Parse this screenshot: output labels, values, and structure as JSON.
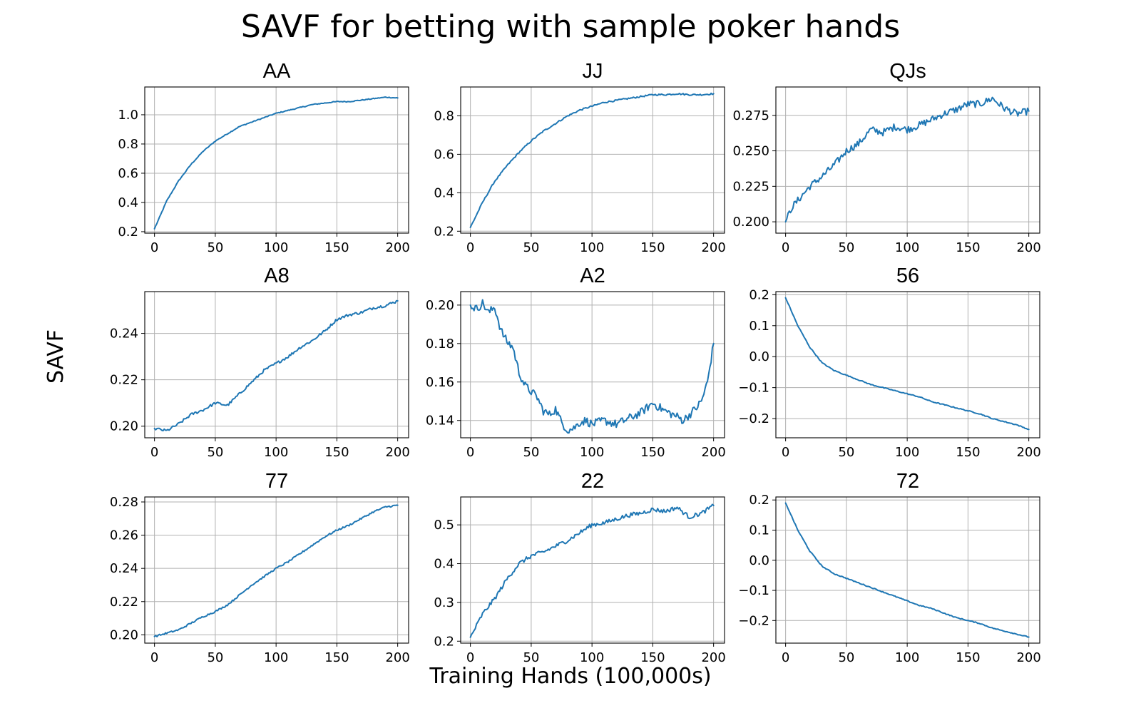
{
  "figure": {
    "title": "SAVF for betting with sample poker hands",
    "xlabel": "Training Hands (100,000s)",
    "ylabel": "SAVF",
    "line_color": "#1f77b4",
    "grid_color": "#b0b0b0"
  },
  "chart_data": [
    {
      "type": "line",
      "title": "AA",
      "grid": true,
      "xlim": [
        -8,
        209
      ],
      "ylim": [
        0.19,
        1.19
      ],
      "xticks": [
        0,
        50,
        100,
        150,
        200
      ],
      "yticks": [
        0.2,
        0.4,
        0.6,
        0.8,
        1.0
      ],
      "yticklabels": [
        "0.2",
        "0.4",
        "0.6",
        "0.8",
        "1.0"
      ],
      "x": [
        0,
        10,
        20,
        30,
        40,
        50,
        60,
        70,
        80,
        90,
        100,
        110,
        120,
        130,
        140,
        150,
        160,
        170,
        180,
        190,
        200
      ],
      "y": [
        0.22,
        0.41,
        0.55,
        0.66,
        0.75,
        0.82,
        0.87,
        0.92,
        0.95,
        0.98,
        1.01,
        1.03,
        1.05,
        1.07,
        1.08,
        1.09,
        1.09,
        1.1,
        1.11,
        1.12,
        1.115
      ],
      "noise": 0.003
    },
    {
      "type": "line",
      "title": "JJ",
      "grid": true,
      "xlim": [
        -8,
        209
      ],
      "ylim": [
        0.19,
        0.95
      ],
      "xticks": [
        0,
        50,
        100,
        150,
        200
      ],
      "yticks": [
        0.2,
        0.4,
        0.6,
        0.8
      ],
      "yticklabels": [
        "0.2",
        "0.4",
        "0.6",
        "0.8"
      ],
      "x": [
        0,
        10,
        20,
        30,
        40,
        50,
        60,
        70,
        80,
        90,
        100,
        110,
        120,
        130,
        140,
        150,
        160,
        170,
        180,
        190,
        200
      ],
      "y": [
        0.22,
        0.35,
        0.46,
        0.54,
        0.61,
        0.67,
        0.72,
        0.76,
        0.8,
        0.83,
        0.85,
        0.87,
        0.88,
        0.89,
        0.9,
        0.91,
        0.91,
        0.915,
        0.91,
        0.91,
        0.915
      ],
      "noise": 0.004
    },
    {
      "type": "line",
      "title": "QJs",
      "grid": true,
      "xlim": [
        -8,
        209
      ],
      "ylim": [
        0.192,
        0.295
      ],
      "xticks": [
        0,
        50,
        100,
        150,
        200
      ],
      "yticks": [
        0.2,
        0.225,
        0.25,
        0.275
      ],
      "yticklabels": [
        "0.200",
        "0.225",
        "0.250",
        "0.275"
      ],
      "x": [
        0,
        5,
        10,
        20,
        30,
        40,
        50,
        60,
        70,
        80,
        90,
        100,
        110,
        120,
        130,
        140,
        150,
        160,
        170,
        180,
        190,
        200
      ],
      "y": [
        0.2,
        0.21,
        0.215,
        0.225,
        0.232,
        0.24,
        0.25,
        0.255,
        0.265,
        0.263,
        0.267,
        0.265,
        0.268,
        0.272,
        0.276,
        0.279,
        0.283,
        0.283,
        0.287,
        0.28,
        0.276,
        0.278
      ],
      "noise": 0.0025
    },
    {
      "type": "line",
      "title": "A8",
      "grid": true,
      "xlim": [
        -8,
        209
      ],
      "ylim": [
        0.195,
        0.258
      ],
      "xticks": [
        0,
        50,
        100,
        150,
        200
      ],
      "yticks": [
        0.2,
        0.22,
        0.24
      ],
      "yticklabels": [
        "0.20",
        "0.22",
        "0.24"
      ],
      "x": [
        0,
        10,
        20,
        30,
        40,
        50,
        60,
        70,
        80,
        90,
        100,
        110,
        120,
        130,
        140,
        150,
        160,
        170,
        180,
        190,
        200
      ],
      "y": [
        0.199,
        0.198,
        0.201,
        0.205,
        0.207,
        0.21,
        0.209,
        0.214,
        0.219,
        0.224,
        0.227,
        0.23,
        0.234,
        0.237,
        0.241,
        0.246,
        0.248,
        0.249,
        0.251,
        0.252,
        0.254
      ],
      "noise": 0.0006
    },
    {
      "type": "line",
      "title": "A2",
      "grid": true,
      "xlim": [
        -8,
        209
      ],
      "ylim": [
        0.131,
        0.207
      ],
      "xticks": [
        0,
        50,
        100,
        150,
        200
      ],
      "yticks": [
        0.14,
        0.16,
        0.18,
        0.2
      ],
      "yticklabels": [
        "0.14",
        "0.16",
        "0.18",
        "0.20"
      ],
      "x": [
        0,
        5,
        10,
        15,
        20,
        25,
        30,
        35,
        40,
        45,
        50,
        55,
        60,
        65,
        70,
        75,
        80,
        85,
        90,
        95,
        100,
        110,
        120,
        130,
        140,
        150,
        160,
        170,
        175,
        180,
        185,
        190,
        195,
        200
      ],
      "y": [
        0.2,
        0.198,
        0.201,
        0.196,
        0.199,
        0.187,
        0.181,
        0.178,
        0.165,
        0.158,
        0.155,
        0.152,
        0.145,
        0.143,
        0.146,
        0.139,
        0.135,
        0.136,
        0.139,
        0.14,
        0.138,
        0.14,
        0.138,
        0.141,
        0.144,
        0.149,
        0.145,
        0.142,
        0.14,
        0.143,
        0.146,
        0.15,
        0.16,
        0.18
      ],
      "noise": 0.0022
    },
    {
      "type": "line",
      "title": "56",
      "grid": true,
      "xlim": [
        -8,
        209
      ],
      "ylim": [
        -0.262,
        0.21
      ],
      "xticks": [
        0,
        50,
        100,
        150,
        200
      ],
      "yticks": [
        -0.2,
        -0.1,
        0.0,
        0.1,
        0.2
      ],
      "yticklabels": [
        "−0.2",
        "−0.1",
        "0.0",
        "0.1",
        "0.2"
      ],
      "x": [
        0,
        10,
        20,
        30,
        40,
        50,
        60,
        70,
        80,
        90,
        100,
        110,
        120,
        130,
        140,
        150,
        160,
        170,
        180,
        190,
        200
      ],
      "y": [
        0.19,
        0.1,
        0.03,
        -0.02,
        -0.045,
        -0.06,
        -0.075,
        -0.09,
        -0.1,
        -0.11,
        -0.12,
        -0.13,
        -0.145,
        -0.155,
        -0.165,
        -0.175,
        -0.185,
        -0.2,
        -0.21,
        -0.22,
        -0.235
      ],
      "noise": 0.0015
    },
    {
      "type": "line",
      "title": "77",
      "grid": true,
      "xlim": [
        -8,
        209
      ],
      "ylim": [
        0.195,
        0.283
      ],
      "xticks": [
        0,
        50,
        100,
        150,
        200
      ],
      "yticks": [
        0.2,
        0.22,
        0.24,
        0.26,
        0.28
      ],
      "yticklabels": [
        "0.20",
        "0.22",
        "0.24",
        "0.26",
        "0.28"
      ],
      "x": [
        0,
        10,
        20,
        30,
        40,
        50,
        60,
        70,
        80,
        90,
        100,
        110,
        120,
        130,
        140,
        150,
        160,
        170,
        180,
        190,
        200
      ],
      "y": [
        0.199,
        0.201,
        0.203,
        0.207,
        0.211,
        0.214,
        0.218,
        0.224,
        0.23,
        0.235,
        0.24,
        0.244,
        0.249,
        0.254,
        0.259,
        0.263,
        0.266,
        0.27,
        0.274,
        0.277,
        0.278
      ],
      "noise": 0.0005
    },
    {
      "type": "line",
      "title": "22",
      "grid": true,
      "xlim": [
        -8,
        209
      ],
      "ylim": [
        0.195,
        0.572
      ],
      "xticks": [
        0,
        50,
        100,
        150,
        200
      ],
      "yticks": [
        0.2,
        0.3,
        0.4,
        0.5
      ],
      "yticklabels": [
        "0.2",
        "0.3",
        "0.4",
        "0.5"
      ],
      "x": [
        0,
        10,
        20,
        30,
        40,
        50,
        60,
        70,
        80,
        90,
        100,
        110,
        120,
        130,
        140,
        150,
        160,
        170,
        180,
        190,
        200
      ],
      "y": [
        0.21,
        0.27,
        0.31,
        0.36,
        0.4,
        0.42,
        0.43,
        0.445,
        0.46,
        0.48,
        0.5,
        0.505,
        0.515,
        0.525,
        0.53,
        0.54,
        0.535,
        0.545,
        0.52,
        0.53,
        0.55
      ],
      "noise": 0.0055
    },
    {
      "type": "line",
      "title": "72",
      "grid": true,
      "xlim": [
        -8,
        209
      ],
      "ylim": [
        -0.275,
        0.21
      ],
      "xticks": [
        0,
        50,
        100,
        150,
        200
      ],
      "yticks": [
        -0.2,
        -0.1,
        0.0,
        0.1,
        0.2
      ],
      "yticklabels": [
        "−0.2",
        "−0.1",
        "0.0",
        "0.1",
        "0.2"
      ],
      "x": [
        0,
        10,
        20,
        30,
        40,
        50,
        60,
        70,
        80,
        90,
        100,
        110,
        120,
        130,
        140,
        150,
        160,
        170,
        180,
        190,
        200
      ],
      "y": [
        0.19,
        0.1,
        0.03,
        -0.02,
        -0.045,
        -0.06,
        -0.075,
        -0.09,
        -0.105,
        -0.12,
        -0.135,
        -0.15,
        -0.16,
        -0.175,
        -0.19,
        -0.2,
        -0.21,
        -0.225,
        -0.235,
        -0.245,
        -0.255
      ],
      "noise": 0.0015
    }
  ]
}
